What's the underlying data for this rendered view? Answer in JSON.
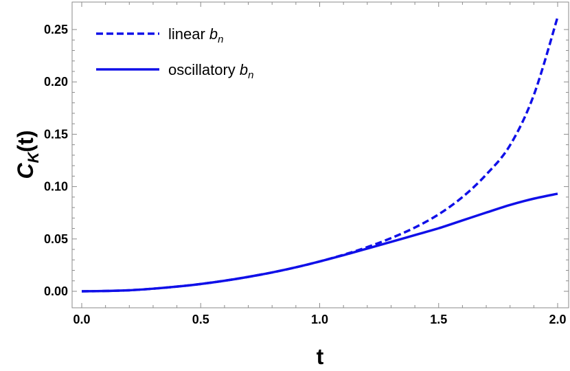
{
  "chart_data": {
    "type": "line",
    "title": "",
    "xlabel": "t",
    "ylabel_main": "C",
    "ylabel_sub": "K",
    "ylabel_tail": "(t)",
    "xlim": [
      -0.03,
      2.03
    ],
    "ylim": [
      -0.015,
      0.273
    ],
    "xticks": [
      0.0,
      0.5,
      1.0,
      1.5,
      2.0
    ],
    "xtick_labels": [
      "0.0",
      "0.5",
      "1.0",
      "1.5",
      "2.0"
    ],
    "yticks": [
      0.0,
      0.05,
      0.1,
      0.15,
      0.2,
      0.25
    ],
    "ytick_labels": [
      "0.00",
      "0.05",
      "0.10",
      "0.15",
      "0.20",
      "0.25"
    ],
    "grid": false,
    "legend_position": "top-left",
    "series": [
      {
        "name_prefix": "linear ",
        "name_math": "b",
        "name_sub": "n",
        "style": "dashed",
        "color": "#1010e8",
        "x": [
          0.0,
          0.1,
          0.2,
          0.3,
          0.4,
          0.5,
          0.6,
          0.7,
          0.8,
          0.9,
          1.0,
          1.1,
          1.2,
          1.3,
          1.4,
          1.5,
          1.6,
          1.7,
          1.8,
          1.9,
          2.0
        ],
        "y": [
          0.0,
          0.0003,
          0.001,
          0.0025,
          0.0045,
          0.007,
          0.0101,
          0.0138,
          0.018,
          0.0229,
          0.0285,
          0.0349,
          0.0422,
          0.0508,
          0.0609,
          0.0735,
          0.09,
          0.1115,
          0.1395,
          0.1875,
          0.262
        ]
      },
      {
        "name_prefix": "oscillatory ",
        "name_math": "b",
        "name_sub": "n",
        "style": "solid",
        "color": "#1010e8",
        "x": [
          0.0,
          0.1,
          0.2,
          0.3,
          0.4,
          0.5,
          0.6,
          0.7,
          0.8,
          0.9,
          1.0,
          1.1,
          1.2,
          1.3,
          1.4,
          1.5,
          1.6,
          1.7,
          1.8,
          1.9,
          2.0
        ],
        "y": [
          0.0,
          0.0003,
          0.001,
          0.0025,
          0.0045,
          0.007,
          0.0101,
          0.0138,
          0.018,
          0.0229,
          0.0285,
          0.0345,
          0.0408,
          0.0472,
          0.0537,
          0.0602,
          0.0677,
          0.0752,
          0.0825,
          0.0885,
          0.0932
        ]
      }
    ]
  }
}
